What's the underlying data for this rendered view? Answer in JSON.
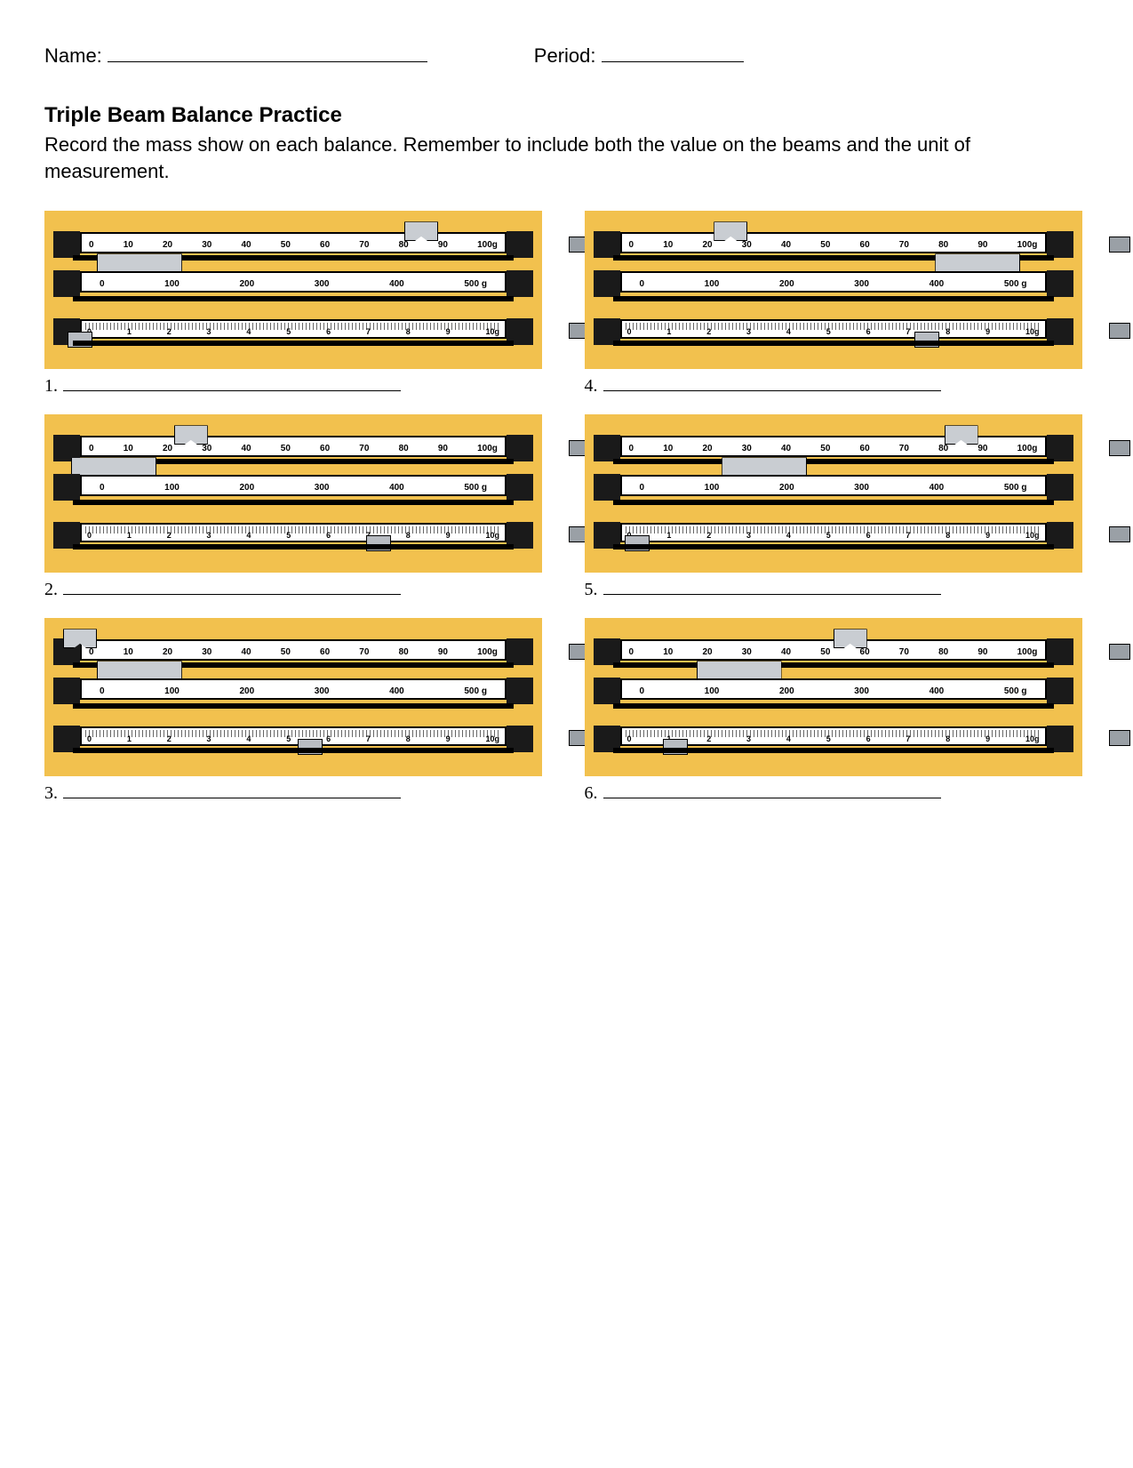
{
  "header": {
    "name_label": "Name:",
    "period_label": "Period:"
  },
  "title": "Triple Beam Balance Practice",
  "instructions": "Record the mass show on each balance. Remember to include both the value on the beams and the unit of measurement.",
  "beam_labels": {
    "top": [
      "0",
      "10",
      "20",
      "30",
      "40",
      "50",
      "60",
      "70",
      "80",
      "90",
      "100g"
    ],
    "mid": [
      "0",
      "100",
      "200",
      "300",
      "400",
      "500 g"
    ],
    "bot": [
      "0",
      "1",
      "2",
      "3",
      "4",
      "5",
      "6",
      "7",
      "8",
      "9",
      "10g"
    ]
  },
  "colors": {
    "background": "#f2c14e",
    "beam_fill": "#ffffff",
    "beam_border": "#000000",
    "rider_fill": "#c9cdd2",
    "endcap": "#1a1a1a"
  },
  "problems": [
    {
      "n": "1.",
      "rider_top_pct": 80,
      "rider_mid_pct": 6,
      "rider_bot_pct": 0
    },
    {
      "n": "2.",
      "rider_top_pct": 26,
      "rider_mid_pct": 0,
      "rider_bot_pct": 70
    },
    {
      "n": "3.",
      "rider_top_pct": 0,
      "rider_mid_pct": 6,
      "rider_bot_pct": 54
    },
    {
      "n": "4.",
      "rider_top_pct": 26,
      "rider_mid_pct": 76,
      "rider_bot_pct": 72
    },
    {
      "n": "5.",
      "rider_top_pct": 80,
      "rider_mid_pct": 26,
      "rider_bot_pct": 4
    },
    {
      "n": "6.",
      "rider_top_pct": 54,
      "rider_mid_pct": 20,
      "rider_bot_pct": 13
    }
  ]
}
